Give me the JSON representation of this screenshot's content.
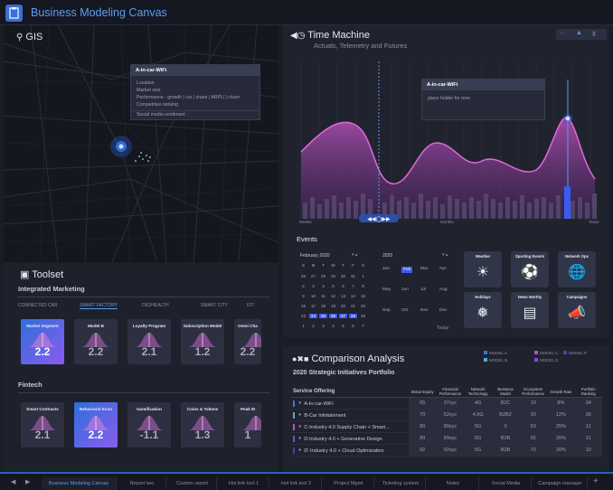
{
  "app": {
    "title": "Business Modeling Canvas"
  },
  "gis": {
    "title": "GIS",
    "tooltip": {
      "title": "A-in-car-WiFi",
      "rows": [
        "Location",
        "Market size",
        "Performance - growth | car | share | ARPU | churn",
        "Competitive ranking",
        "Social media sentiment"
      ]
    }
  },
  "toolset": {
    "title": "Toolset",
    "section1": "Integrated Marketing",
    "tabs": [
      "CONNECTED CAR",
      "SMART FACTORY",
      "DIGIHEALTH",
      "SMART CITY",
      "IOT"
    ],
    "cards1": [
      {
        "label": "Market Segment",
        "value": "2.2",
        "selected": true
      },
      {
        "label": "Model B",
        "value": "2.2",
        "selected": false
      },
      {
        "label": "Loyalty Program",
        "value": "2.1",
        "selected": false
      },
      {
        "label": "Subscription Model",
        "value": "1.2",
        "selected": false
      },
      {
        "label": "Omni Cha",
        "value": "2.2",
        "selected": false
      }
    ],
    "section2": "Fintech",
    "cards2": [
      {
        "label": "Smart Contracts",
        "value": "2.1",
        "selected": false
      },
      {
        "label": "Behavioral Econ",
        "value": "2.2",
        "selected": true
      },
      {
        "label": "Gamification",
        "value": "-1.1",
        "selected": false
      },
      {
        "label": "Coins & Tokens",
        "value": "1.3",
        "selected": false
      },
      {
        "label": "Peak M",
        "value": "1",
        "selected": false
      }
    ]
  },
  "timemachine": {
    "title": "Time Machine",
    "subtitle": "Actuals, Telemetry and Futures",
    "tooltip_title": "A-in-car-WiFi",
    "tooltip_body": "place holder for now",
    "axis": [
      "Weeks",
      "Months",
      "Years"
    ]
  },
  "events": {
    "title": "Events",
    "cal_title": "February 2020",
    "weekdays": [
      "S",
      "M",
      "T",
      "W",
      "T",
      "F",
      "S"
    ],
    "days": [
      "26",
      "27",
      "28",
      "29",
      "30",
      "31",
      "1",
      "2",
      "3",
      "4",
      "5",
      "6",
      "7",
      "8",
      "9",
      "10",
      "11",
      "12",
      "13",
      "14",
      "15",
      "16",
      "17",
      "18",
      "19",
      "20",
      "21",
      "22",
      "23",
      "24",
      "25",
      "26",
      "27",
      "28",
      "29",
      "1",
      "2",
      "3",
      "4",
      "5",
      "6",
      "7"
    ],
    "year": "2020",
    "months": [
      "Jan",
      "Feb",
      "Mar",
      "Apr",
      "May",
      "Jun",
      "Jul",
      "Aug",
      "Sep",
      "Oct",
      "Nov",
      "Dec"
    ],
    "today": "Today",
    "cards": [
      "Weather",
      "Sporting Events",
      "Network Ops",
      "Holidays",
      "News Worthy",
      "Campaigns"
    ]
  },
  "comparison": {
    "title": "Comparison Analysis",
    "subtitle": "2020 Strategic Initiatives Portfolio",
    "legend": [
      {
        "label": "MODEL A",
        "color": "#2e7be0"
      },
      {
        "label": "MODEL B",
        "color": "#4ab0c8"
      },
      {
        "label": "MODEL C",
        "color": "#c04fb8"
      },
      {
        "label": "MODEL D",
        "color": "#7a4fd8"
      },
      {
        "label": "MODEL P",
        "color": "#5a3aa8"
      }
    ],
    "headers": [
      "Service Offering",
      "Brand Equity",
      "Financial Performance",
      "Network Technology",
      "Business Model",
      "Ecosystem Performance",
      "Growth Rate",
      "Portfolio Ranking"
    ],
    "rows": [
      {
        "name": "A-In-car-WiFi",
        "vals": [
          "65",
          "37xyc",
          "4G",
          "B2C",
          "10",
          "8%",
          "34"
        ],
        "color": "#2e7be0"
      },
      {
        "name": "B-Car Infotainment",
        "vals": [
          "70",
          "52xyc",
          "4.9G",
          "B2B2",
          "20",
          "12%",
          "36"
        ],
        "color": "#4ab0c8"
      },
      {
        "name": "C-Industry 4.0 Supply Chain + Smart...",
        "vals": [
          "80",
          "80xyc",
          "5G",
          "X",
          "50",
          "25%",
          "11"
        ],
        "color": "#c04fb8"
      },
      {
        "name": "D-Industry 4.0 + Generative Design",
        "vals": [
          "89",
          "89xyc",
          "5G",
          "B2B",
          "55",
          "30%",
          "11"
        ],
        "color": "#7a4fd8"
      },
      {
        "name": "D'-Industry 4.0 + Cloud Optimization",
        "vals": [
          "92",
          "92xyc",
          "5G",
          "B2B",
          "70",
          "30%",
          "10"
        ],
        "color": "#5a3aa8"
      }
    ]
  },
  "bottom": {
    "tabs": [
      "Business Modeling Canvas",
      "Report two",
      "Custom report",
      "Hot link tool 1",
      "Hot link tool 2",
      "Project Mgmt",
      "Ticketing system",
      "Notes",
      "Social Media",
      "Campaign manager"
    ]
  }
}
